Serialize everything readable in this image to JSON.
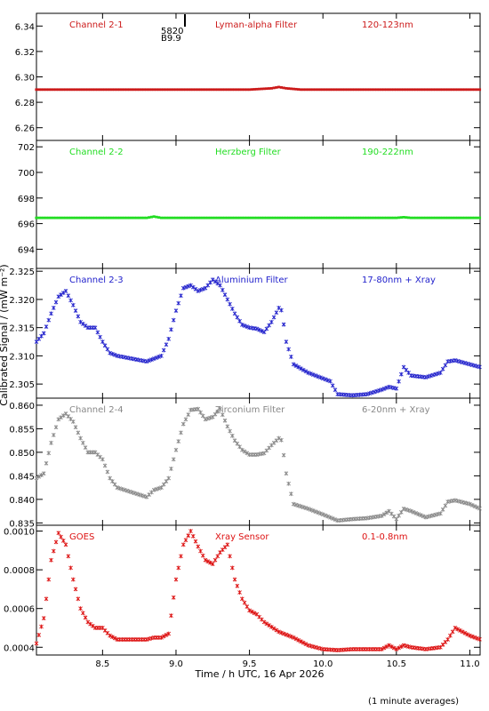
{
  "figure": {
    "xlabel": "Time / h UTC, 16 Apr 2026",
    "ylabel": "Calibrated Signal / (mW m⁻²)",
    "footnote": "(1 minute averages)",
    "marker_text_top": "5820",
    "marker_text_bottom": "B9.9"
  },
  "chart_data": [
    {
      "type": "scatter",
      "channel": "Channel 2-1",
      "filter": "Lyman-alpha Filter",
      "band": "120-123nm",
      "color": "#cc1a1a",
      "xlim": [
        8.05,
        11.07
      ],
      "ylim": [
        6.25,
        6.35
      ],
      "xticks": [
        8.5,
        9.0,
        9.5,
        10.0,
        10.5,
        11.0
      ],
      "yticks": [
        6.26,
        6.28,
        6.3,
        6.32,
        6.34
      ],
      "ytick_labels": [
        "6.26",
        "6.28",
        "6.30",
        "6.32",
        "6.34"
      ],
      "x": [
        8.05,
        9.5,
        9.65,
        9.7,
        9.75,
        9.85,
        11.07
      ],
      "y": [
        6.29,
        6.29,
        6.291,
        6.292,
        6.291,
        6.29,
        6.29
      ]
    },
    {
      "type": "scatter",
      "channel": "Channel 2-2",
      "filter": "Herzberg Filter",
      "band": "190-222nm",
      "color": "#22dd22",
      "xlim": [
        8.05,
        11.07
      ],
      "ylim": [
        692.5,
        702.5
      ],
      "xticks": [
        8.5,
        9.0,
        9.5,
        10.0,
        10.5,
        11.0
      ],
      "yticks": [
        694,
        696,
        698,
        700,
        702
      ],
      "ytick_labels": [
        "694",
        "696",
        "698",
        "700",
        "702"
      ],
      "x": [
        8.05,
        8.8,
        8.85,
        8.9,
        10.5,
        10.55,
        10.6,
        11.07
      ],
      "y": [
        696.45,
        696.45,
        696.55,
        696.45,
        696.45,
        696.5,
        696.45,
        696.45
      ]
    },
    {
      "type": "scatter",
      "channel": "Channel 2-3",
      "filter": "Aluminium Filter",
      "band": "17-80nm + Xray",
      "color": "#2222cc",
      "xlim": [
        8.05,
        11.07
      ],
      "ylim": [
        2.3025,
        2.3255
      ],
      "xticks": [
        8.5,
        9.0,
        9.5,
        10.0,
        10.5,
        11.0
      ],
      "yticks": [
        2.305,
        2.31,
        2.315,
        2.32,
        2.325
      ],
      "ytick_labels": [
        "2.305",
        "2.310",
        "2.315",
        "2.320",
        "2.325"
      ],
      "x": [
        8.05,
        8.1,
        8.15,
        8.2,
        8.25,
        8.3,
        8.35,
        8.4,
        8.45,
        8.5,
        8.55,
        8.6,
        8.7,
        8.8,
        8.9,
        8.95,
        9.0,
        9.05,
        9.1,
        9.15,
        9.2,
        9.25,
        9.3,
        9.35,
        9.4,
        9.45,
        9.5,
        9.55,
        9.6,
        9.65,
        9.7,
        9.72,
        9.75,
        9.8,
        9.9,
        10.0,
        10.05,
        10.1,
        10.2,
        10.3,
        10.4,
        10.45,
        10.5,
        10.55,
        10.6,
        10.7,
        10.8,
        10.85,
        10.9,
        11.0,
        11.07
      ],
      "y": [
        2.3125,
        2.314,
        2.3175,
        2.3205,
        2.3215,
        2.319,
        2.316,
        2.315,
        2.315,
        2.3125,
        2.3105,
        2.31,
        2.3095,
        2.309,
        2.31,
        2.313,
        2.318,
        2.322,
        2.3225,
        2.3215,
        2.322,
        2.3235,
        2.3225,
        2.32,
        2.3175,
        2.3155,
        2.315,
        2.3148,
        2.3142,
        2.316,
        2.3185,
        2.318,
        2.3125,
        2.3085,
        2.307,
        2.306,
        2.3055,
        2.3032,
        2.303,
        2.3032,
        2.304,
        2.3045,
        2.3042,
        2.308,
        2.3065,
        2.3062,
        2.307,
        2.309,
        2.3092,
        2.3085,
        2.308
      ]
    },
    {
      "type": "scatter",
      "channel": "Channel 2-4",
      "filter": "Zirconium Filter",
      "band": "6-20nm + Xray",
      "color": "#888888",
      "xlim": [
        8.05,
        11.07
      ],
      "ylim": [
        0.8345,
        0.8615
      ],
      "xticks": [
        8.5,
        9.0,
        9.5,
        10.0,
        10.5,
        11.0
      ],
      "yticks": [
        0.835,
        0.84,
        0.845,
        0.85,
        0.855,
        0.86
      ],
      "ytick_labels": [
        "0.835",
        "0.840",
        "0.845",
        "0.850",
        "0.855",
        "0.860"
      ],
      "x": [
        8.05,
        8.1,
        8.15,
        8.2,
        8.25,
        8.3,
        8.35,
        8.4,
        8.45,
        8.5,
        8.55,
        8.6,
        8.7,
        8.8,
        8.85,
        8.9,
        8.95,
        9.0,
        9.05,
        9.1,
        9.15,
        9.2,
        9.25,
        9.3,
        9.35,
        9.4,
        9.45,
        9.5,
        9.55,
        9.6,
        9.65,
        9.7,
        9.72,
        9.75,
        9.8,
        9.9,
        10.0,
        10.1,
        10.2,
        10.3,
        10.4,
        10.45,
        10.5,
        10.55,
        10.6,
        10.7,
        10.8,
        10.85,
        10.9,
        11.0,
        11.07
      ],
      "y": [
        0.8445,
        0.8455,
        0.852,
        0.857,
        0.8582,
        0.8565,
        0.853,
        0.85,
        0.85,
        0.8485,
        0.8445,
        0.8425,
        0.8415,
        0.8405,
        0.842,
        0.8425,
        0.8445,
        0.8505,
        0.856,
        0.859,
        0.8592,
        0.857,
        0.8575,
        0.8592,
        0.8555,
        0.8525,
        0.8505,
        0.8495,
        0.8495,
        0.8498,
        0.8515,
        0.853,
        0.8525,
        0.8455,
        0.839,
        0.838,
        0.8368,
        0.8355,
        0.8358,
        0.836,
        0.8365,
        0.8375,
        0.8358,
        0.838,
        0.8375,
        0.8362,
        0.837,
        0.8395,
        0.8398,
        0.839,
        0.838
      ]
    },
    {
      "type": "scatter",
      "channel": "GOES",
      "filter": "Xray Sensor",
      "band": "0.1-0.8nm",
      "color": "#dd1111",
      "xlim": [
        8.05,
        11.07
      ],
      "ylim": [
        0.00036,
        0.00103
      ],
      "xticks": [
        8.5,
        9.0,
        9.5,
        10.0,
        10.5,
        11.0
      ],
      "yticks": [
        0.0004,
        0.0006,
        0.0008,
        0.001
      ],
      "ytick_labels": [
        "0.0004",
        "0.0006",
        "0.0008",
        "0.0010"
      ],
      "x": [
        8.05,
        8.1,
        8.15,
        8.2,
        8.25,
        8.3,
        8.35,
        8.4,
        8.45,
        8.5,
        8.55,
        8.6,
        8.7,
        8.8,
        8.85,
        8.9,
        8.95,
        9.0,
        9.05,
        9.1,
        9.15,
        9.2,
        9.25,
        9.3,
        9.35,
        9.4,
        9.45,
        9.5,
        9.55,
        9.6,
        9.7,
        9.8,
        9.9,
        10.0,
        10.1,
        10.2,
        10.3,
        10.4,
        10.45,
        10.5,
        10.55,
        10.6,
        10.7,
        10.8,
        10.85,
        10.9,
        11.0,
        11.07
      ],
      "y": [
        0.00042,
        0.00055,
        0.00085,
        0.00099,
        0.00093,
        0.00075,
        0.0006,
        0.00053,
        0.0005,
        0.0005,
        0.00046,
        0.00044,
        0.00044,
        0.00044,
        0.00045,
        0.00045,
        0.00047,
        0.00075,
        0.00093,
        0.001,
        0.00092,
        0.00085,
        0.00083,
        0.00089,
        0.00093,
        0.00075,
        0.00065,
        0.00059,
        0.00057,
        0.00053,
        0.00048,
        0.00045,
        0.00041,
        0.00039,
        0.000385,
        0.00039,
        0.00039,
        0.00039,
        0.00041,
        0.00039,
        0.00041,
        0.0004,
        0.00039,
        0.0004,
        0.00044,
        0.0005,
        0.00046,
        0.00044
      ]
    }
  ]
}
